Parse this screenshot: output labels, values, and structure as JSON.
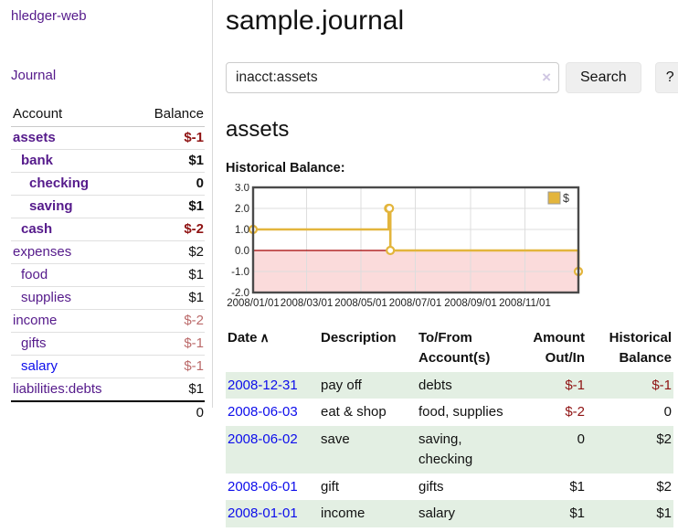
{
  "sidebar": {
    "app_title": "hledger-web",
    "journal_label": "Journal",
    "accounts_header": {
      "account": "Account",
      "balance": "Balance"
    },
    "accounts": [
      {
        "name": "assets",
        "depth": 0,
        "bold": true,
        "balance": "$-1",
        "neg": "strong"
      },
      {
        "name": "bank",
        "depth": 1,
        "bold": true,
        "balance": "$1",
        "neg": "none"
      },
      {
        "name": "checking",
        "depth": 2,
        "bold": true,
        "balance": "0",
        "neg": "none"
      },
      {
        "name": "saving",
        "depth": 2,
        "bold": true,
        "balance": "$1",
        "neg": "none"
      },
      {
        "name": "cash",
        "depth": 1,
        "bold": true,
        "balance": "$-2",
        "neg": "strong"
      },
      {
        "name": "expenses",
        "depth": 0,
        "bold": false,
        "balance": "$2",
        "neg": "none"
      },
      {
        "name": "food",
        "depth": 1,
        "bold": false,
        "balance": "$1",
        "neg": "none"
      },
      {
        "name": "supplies",
        "depth": 1,
        "bold": false,
        "balance": "$1",
        "neg": "none"
      },
      {
        "name": "income",
        "depth": 0,
        "bold": false,
        "balance": "$-2",
        "neg": "muted"
      },
      {
        "name": "gifts",
        "depth": 1,
        "bold": false,
        "balance": "$-1",
        "neg": "muted"
      },
      {
        "name": "salary",
        "depth": 1,
        "bold": false,
        "balance": "$-1",
        "neg": "muted",
        "link_color": "blue"
      },
      {
        "name": "liabilities:debts",
        "depth": 0,
        "bold": false,
        "balance": "$1",
        "neg": "none"
      }
    ],
    "total": "0"
  },
  "main": {
    "title": "sample.journal",
    "search": {
      "value": "inacct:assets",
      "clear_icon": "×",
      "button_label": "Search",
      "help_label": "?"
    },
    "account_heading": "assets",
    "transactions": {
      "headers": {
        "date": "Date",
        "sort_icon": "∧",
        "description": "Description",
        "accounts": "To/From Account(s)",
        "amount": "Amount Out/In",
        "balance": "Historical Balance"
      },
      "rows": [
        {
          "date": "2008-12-31",
          "description": "pay off",
          "accounts": "debts",
          "amount": "$-1",
          "amount_neg": true,
          "balance": "$-1",
          "balance_neg": true,
          "shaded": true
        },
        {
          "date": "2008-06-03",
          "description": "eat & shop",
          "accounts": "food, supplies",
          "amount": "$-2",
          "amount_neg": true,
          "balance": "0",
          "balance_neg": false,
          "shaded": false
        },
        {
          "date": "2008-06-02",
          "description": "save",
          "accounts": "saving, checking",
          "amount": "0",
          "amount_neg": false,
          "balance": "$2",
          "balance_neg": false,
          "shaded": true
        },
        {
          "date": "2008-06-01",
          "description": "gift",
          "accounts": "gifts",
          "amount": "$1",
          "amount_neg": false,
          "balance": "$2",
          "balance_neg": false,
          "shaded": false
        },
        {
          "date": "2008-01-01",
          "description": "income",
          "accounts": "salary",
          "amount": "$1",
          "amount_neg": false,
          "balance": "$1",
          "balance_neg": false,
          "shaded": true
        }
      ]
    }
  },
  "chart_data": {
    "type": "line",
    "title": "Historical Balance:",
    "step": true,
    "series": [
      {
        "name": "$",
        "color": "#e3b53c",
        "points": [
          [
            "2008-01-01",
            1
          ],
          [
            "2008-06-01",
            2
          ],
          [
            "2008-06-02",
            2
          ],
          [
            "2008-06-03",
            0
          ],
          [
            "2008-12-31",
            -1
          ]
        ]
      }
    ],
    "x_range": [
      "2008-01-01",
      "2008-12-31"
    ],
    "x_ticks": [
      {
        "date": "2008-01-01",
        "label": "2008/01/01"
      },
      {
        "date": "2008-03-01",
        "label": "2008/03/01"
      },
      {
        "date": "2008-05-01",
        "label": "2008/05/01"
      },
      {
        "date": "2008-07-01",
        "label": "2008/07/01"
      },
      {
        "date": "2008-09-01",
        "label": "2008/09/01"
      },
      {
        "date": "2008-11-01",
        "label": "2008/11/01"
      }
    ],
    "y_ticks": [
      3,
      2,
      1,
      0,
      -1,
      -2
    ],
    "y_tick_labels": [
      "3.0",
      "2.0",
      "1.0",
      "0.0",
      "-1.0",
      "-2.0"
    ],
    "ylim": [
      -2,
      3
    ],
    "grid": true,
    "legend_position": "top-right",
    "negative_fill": "#fbdbdb",
    "zero_line_color": "#a40000"
  },
  "colors": {
    "accent_purple": "#551a8b",
    "link_blue": "#0d0deb",
    "neg_strong": "#8f1313",
    "neg_muted": "#bb6a6a",
    "row_green": "#e3efe3",
    "chart_line": "#e3b53c",
    "chart_border": "#4a4a4a",
    "grid_line": "#dddddd"
  }
}
